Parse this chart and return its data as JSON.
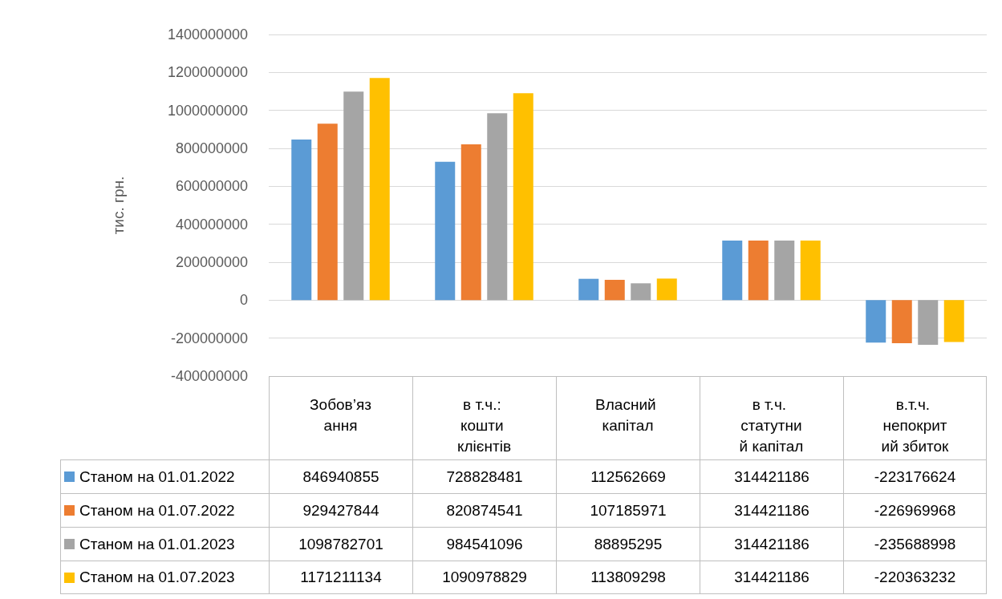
{
  "chart_data": {
    "type": "bar",
    "ylabel": "тис. грн.",
    "categories": [
      "Зобов’язання",
      "в т.ч.: кошти клієнтів",
      "Власний капітал",
      "в т.ч. статутний капітал",
      "в.т.ч. непокритий збиток"
    ],
    "series": [
      {
        "name": "Станом на 01.01.2022",
        "color": "#5b9bd5",
        "values": [
          846940855,
          728828481,
          112562669,
          314421186,
          -223176624
        ]
      },
      {
        "name": "Станом на 01.07.2022",
        "color": "#ed7d31",
        "values": [
          929427844,
          820874541,
          107185971,
          314421186,
          -226969968
        ]
      },
      {
        "name": "Станом на 01.01.2023",
        "color": "#a5a5a5",
        "values": [
          1098782701,
          984541096,
          88895295,
          314421186,
          -235688998
        ]
      },
      {
        "name": "Станом на 01.07.2023",
        "color": "#ffc000",
        "values": [
          1171211134,
          1090978829,
          113809298,
          314421186,
          -220363232
        ]
      }
    ],
    "ylim": [
      -400000000,
      1400000000
    ],
    "yticks": [
      -400000000,
      -200000000,
      0,
      200000000,
      400000000,
      600000000,
      800000000,
      1000000000,
      1200000000,
      1400000000
    ],
    "grid": "y",
    "legend": "bottom",
    "data_labels": true
  }
}
